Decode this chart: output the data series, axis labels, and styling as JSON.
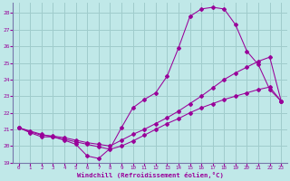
{
  "xlabel": "Windchill (Refroidissement éolien,°C)",
  "bg_color": "#c0e8e8",
  "grid_color": "#a0cccc",
  "line_color": "#990099",
  "spine_color": "#7777aa",
  "xlim": [
    -0.5,
    23.5
  ],
  "ylim": [
    19,
    28.6
  ],
  "xticks": [
    0,
    1,
    2,
    3,
    4,
    5,
    6,
    7,
    8,
    9,
    10,
    11,
    12,
    13,
    14,
    15,
    16,
    17,
    18,
    19,
    20,
    21,
    22,
    23
  ],
  "yticks": [
    19,
    20,
    21,
    22,
    23,
    24,
    25,
    26,
    27,
    28
  ],
  "series": [
    {
      "x": [
        0,
        1,
        2,
        3,
        4,
        5,
        6,
        7,
        8,
        9,
        10,
        11,
        12,
        13,
        14,
        15,
        16,
        17,
        18,
        19,
        20,
        21,
        22,
        23
      ],
      "y": [
        21.1,
        20.8,
        20.55,
        20.55,
        20.35,
        20.1,
        19.4,
        19.25,
        19.85,
        21.1,
        22.3,
        22.8,
        23.2,
        24.2,
        25.9,
        27.8,
        28.25,
        28.35,
        28.25,
        27.3,
        25.7,
        24.9,
        23.4,
        22.7
      ]
    },
    {
      "x": [
        0,
        1,
        2,
        3,
        4,
        5,
        6,
        7,
        8,
        9,
        10,
        11,
        12,
        13,
        14,
        15,
        16,
        17,
        18,
        19,
        20,
        21,
        22,
        23
      ],
      "y": [
        21.1,
        20.85,
        20.65,
        20.6,
        20.5,
        20.35,
        20.2,
        20.1,
        20.0,
        20.35,
        20.7,
        21.0,
        21.35,
        21.7,
        22.1,
        22.55,
        23.0,
        23.5,
        24.0,
        24.4,
        24.75,
        25.1,
        25.35,
        22.7
      ]
    },
    {
      "x": [
        0,
        1,
        2,
        3,
        4,
        5,
        6,
        7,
        8,
        9,
        10,
        11,
        12,
        13,
        14,
        15,
        16,
        17,
        18,
        19,
        20,
        21,
        22,
        23
      ],
      "y": [
        21.1,
        20.9,
        20.7,
        20.55,
        20.4,
        20.25,
        20.1,
        19.95,
        19.8,
        20.0,
        20.3,
        20.65,
        21.0,
        21.35,
        21.65,
        22.0,
        22.3,
        22.55,
        22.8,
        23.0,
        23.2,
        23.4,
        23.55,
        22.7
      ]
    }
  ]
}
